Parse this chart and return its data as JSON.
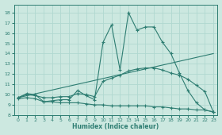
{
  "xlabel": "Humidex (Indice chaleur)",
  "bg_color": "#cce8e0",
  "line_color": "#2e7d72",
  "grid_color": "#b0d8d0",
  "xlim": [
    -0.5,
    23.5
  ],
  "ylim": [
    8,
    18.8
  ],
  "yticks": [
    8,
    9,
    10,
    11,
    12,
    13,
    14,
    15,
    16,
    17,
    18
  ],
  "xticks": [
    0,
    1,
    2,
    3,
    4,
    5,
    6,
    7,
    8,
    9,
    10,
    11,
    12,
    13,
    14,
    15,
    16,
    17,
    18,
    19,
    20,
    21,
    22,
    23
  ],
  "series_main": {
    "x": [
      0,
      1,
      2,
      3,
      4,
      5,
      6,
      7,
      8,
      9,
      10,
      11,
      12,
      13,
      14,
      15,
      16,
      17,
      18,
      19,
      20,
      21,
      22,
      23
    ],
    "y": [
      9.7,
      10.1,
      10.0,
      9.3,
      9.4,
      9.5,
      9.5,
      10.4,
      9.9,
      9.5,
      15.1,
      16.8,
      12.4,
      18.0,
      16.3,
      16.6,
      16.6,
      15.1,
      14.0,
      12.1,
      10.4,
      9.2,
      8.5,
      8.3
    ]
  },
  "series_mid": {
    "x": [
      0,
      1,
      2,
      3,
      4,
      5,
      6,
      7,
      8,
      9,
      10,
      11,
      12,
      13,
      14,
      15,
      16,
      17,
      18,
      19,
      20,
      21,
      22,
      23
    ],
    "y": [
      9.7,
      10.0,
      9.9,
      9.7,
      9.7,
      9.8,
      9.8,
      10.1,
      10.0,
      9.8,
      11.3,
      11.6,
      11.9,
      12.3,
      12.5,
      12.6,
      12.6,
      12.4,
      12.1,
      11.9,
      11.5,
      10.9,
      10.3,
      8.3
    ]
  },
  "series_bottom": {
    "x": [
      0,
      1,
      2,
      3,
      4,
      5,
      6,
      7,
      8,
      9,
      10,
      11,
      12,
      13,
      14,
      15,
      16,
      17,
      18,
      19,
      20,
      21,
      22,
      23
    ],
    "y": [
      9.6,
      9.7,
      9.6,
      9.3,
      9.3,
      9.2,
      9.2,
      9.2,
      9.1,
      9.0,
      9.0,
      8.9,
      8.9,
      8.9,
      8.9,
      8.9,
      8.8,
      8.8,
      8.7,
      8.6,
      8.6,
      8.5,
      8.5,
      8.3
    ]
  },
  "trend_line": {
    "x": [
      0,
      23
    ],
    "y": [
      9.7,
      14.0
    ]
  }
}
